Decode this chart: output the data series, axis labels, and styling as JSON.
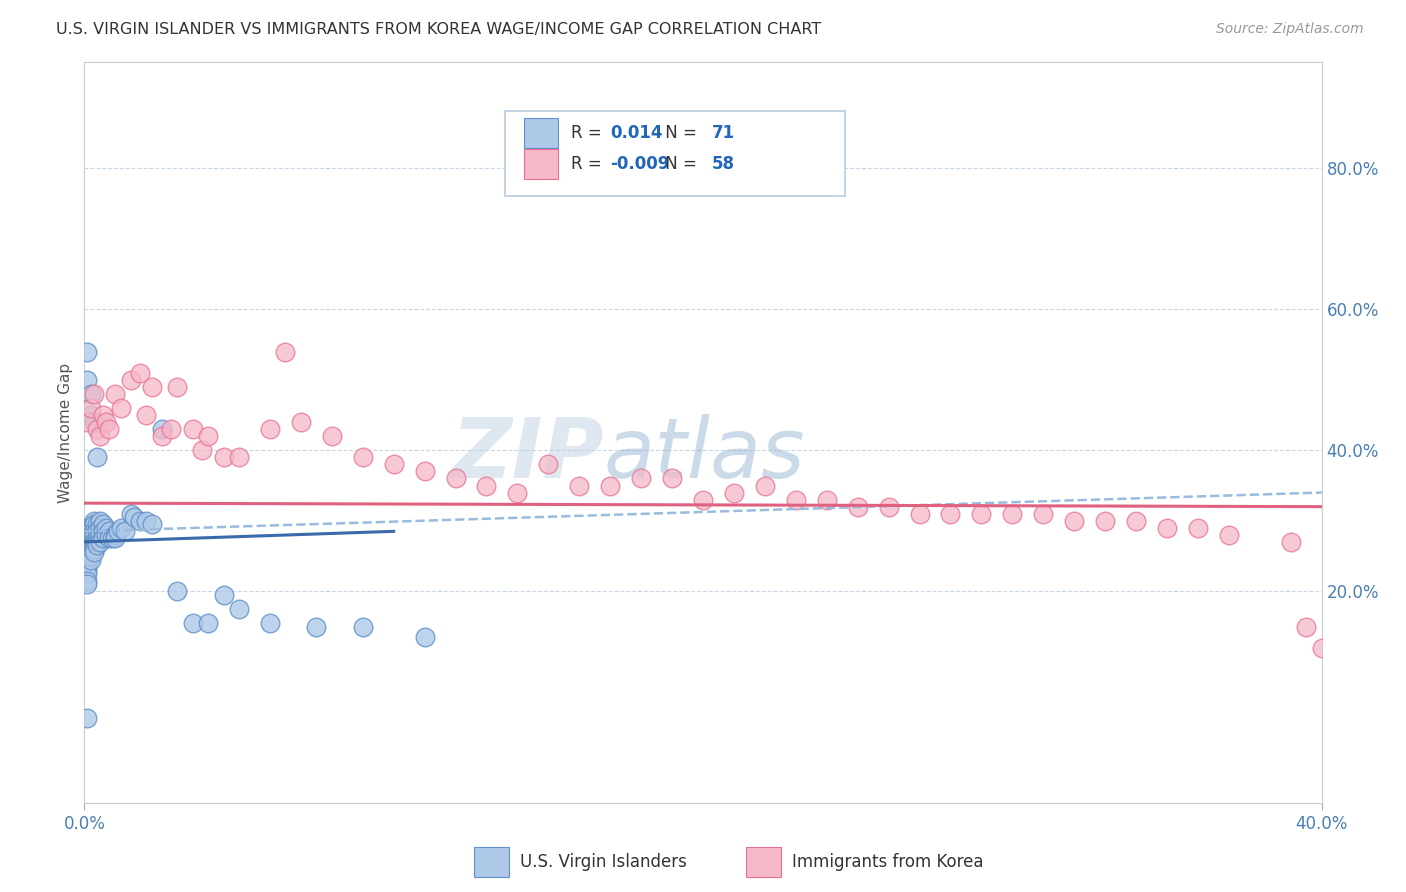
{
  "title": "U.S. VIRGIN ISLANDER VS IMMIGRANTS FROM KOREA WAGE/INCOME GAP CORRELATION CHART",
  "source": "Source: ZipAtlas.com",
  "ylabel": "Wage/Income Gap",
  "right_yticks": [
    "20.0%",
    "40.0%",
    "60.0%",
    "80.0%"
  ],
  "right_ytick_vals": [
    0.2,
    0.4,
    0.6,
    0.8
  ],
  "legend_r1_val": "0.014",
  "legend_n1_val": "71",
  "legend_r2_val": "-0.009",
  "legend_n2_val": "58",
  "blue_color": "#aec8e8",
  "pink_color": "#f5b8c8",
  "blue_edge_color": "#6090c8",
  "pink_edge_color": "#e87090",
  "blue_line_color": "#3a6aaa",
  "pink_line_color": "#e06080",
  "dash_line_color": "#99bbdd",
  "watermark_zip": "ZIP",
  "watermark_atlas": "atlas",
  "xmin": 0.0,
  "xmax": 0.4,
  "ymin": -0.1,
  "ymax": 0.95,
  "blue_trend": [
    0.0,
    0.4,
    0.27,
    0.295
  ],
  "pink_trend": [
    0.0,
    0.4,
    0.325,
    0.32
  ],
  "dash_trend": [
    0.0,
    0.4,
    0.285,
    0.34
  ],
  "blue_dots_x": [
    0.001,
    0.001,
    0.001,
    0.001,
    0.001,
    0.001,
    0.001,
    0.001,
    0.001,
    0.001,
    0.001,
    0.001,
    0.001,
    0.001,
    0.001,
    0.002,
    0.002,
    0.002,
    0.002,
    0.002,
    0.002,
    0.002,
    0.002,
    0.002,
    0.002,
    0.003,
    0.003,
    0.003,
    0.003,
    0.003,
    0.003,
    0.003,
    0.003,
    0.004,
    0.004,
    0.004,
    0.004,
    0.004,
    0.005,
    0.005,
    0.005,
    0.005,
    0.006,
    0.006,
    0.006,
    0.007,
    0.007,
    0.008,
    0.008,
    0.009,
    0.01,
    0.01,
    0.011,
    0.012,
    0.013,
    0.015,
    0.016,
    0.018,
    0.02,
    0.022,
    0.025,
    0.03,
    0.035,
    0.04,
    0.045,
    0.05,
    0.06,
    0.075,
    0.09,
    0.11,
    0.001
  ],
  "blue_dots_y": [
    0.28,
    0.285,
    0.29,
    0.27,
    0.265,
    0.26,
    0.255,
    0.25,
    0.245,
    0.24,
    0.235,
    0.23,
    0.225,
    0.215,
    0.21,
    0.29,
    0.285,
    0.28,
    0.275,
    0.27,
    0.265,
    0.26,
    0.255,
    0.25,
    0.245,
    0.3,
    0.295,
    0.285,
    0.28,
    0.27,
    0.265,
    0.26,
    0.255,
    0.295,
    0.285,
    0.275,
    0.27,
    0.265,
    0.3,
    0.29,
    0.28,
    0.27,
    0.295,
    0.285,
    0.275,
    0.29,
    0.28,
    0.285,
    0.275,
    0.275,
    0.28,
    0.275,
    0.285,
    0.29,
    0.285,
    0.31,
    0.305,
    0.3,
    0.3,
    0.295,
    0.43,
    0.2,
    0.155,
    0.155,
    0.195,
    0.175,
    0.155,
    0.15,
    0.15,
    0.135,
    0.02
  ],
  "blue_extra_x": [
    0.001,
    0.001,
    0.002,
    0.002,
    0.003,
    0.004
  ],
  "blue_extra_y": [
    0.54,
    0.5,
    0.48,
    0.45,
    0.44,
    0.39
  ],
  "pink_dots_x": [
    0.001,
    0.002,
    0.003,
    0.004,
    0.005,
    0.006,
    0.007,
    0.008,
    0.01,
    0.012,
    0.015,
    0.018,
    0.02,
    0.022,
    0.025,
    0.028,
    0.03,
    0.035,
    0.038,
    0.04,
    0.045,
    0.05,
    0.06,
    0.065,
    0.07,
    0.08,
    0.09,
    0.1,
    0.11,
    0.12,
    0.13,
    0.14,
    0.15,
    0.16,
    0.17,
    0.18,
    0.19,
    0.2,
    0.21,
    0.22,
    0.23,
    0.24,
    0.25,
    0.26,
    0.27,
    0.28,
    0.29,
    0.3,
    0.31,
    0.32,
    0.33,
    0.34,
    0.35,
    0.36,
    0.37,
    0.39,
    0.395,
    0.4
  ],
  "pink_dots_y": [
    0.44,
    0.46,
    0.48,
    0.43,
    0.42,
    0.45,
    0.44,
    0.43,
    0.48,
    0.46,
    0.5,
    0.51,
    0.45,
    0.49,
    0.42,
    0.43,
    0.49,
    0.43,
    0.4,
    0.42,
    0.39,
    0.39,
    0.43,
    0.54,
    0.44,
    0.42,
    0.39,
    0.38,
    0.37,
    0.36,
    0.35,
    0.34,
    0.38,
    0.35,
    0.35,
    0.36,
    0.36,
    0.33,
    0.34,
    0.35,
    0.33,
    0.33,
    0.32,
    0.32,
    0.31,
    0.31,
    0.31,
    0.31,
    0.31,
    0.3,
    0.3,
    0.3,
    0.29,
    0.29,
    0.28,
    0.27,
    0.15,
    0.12
  ]
}
